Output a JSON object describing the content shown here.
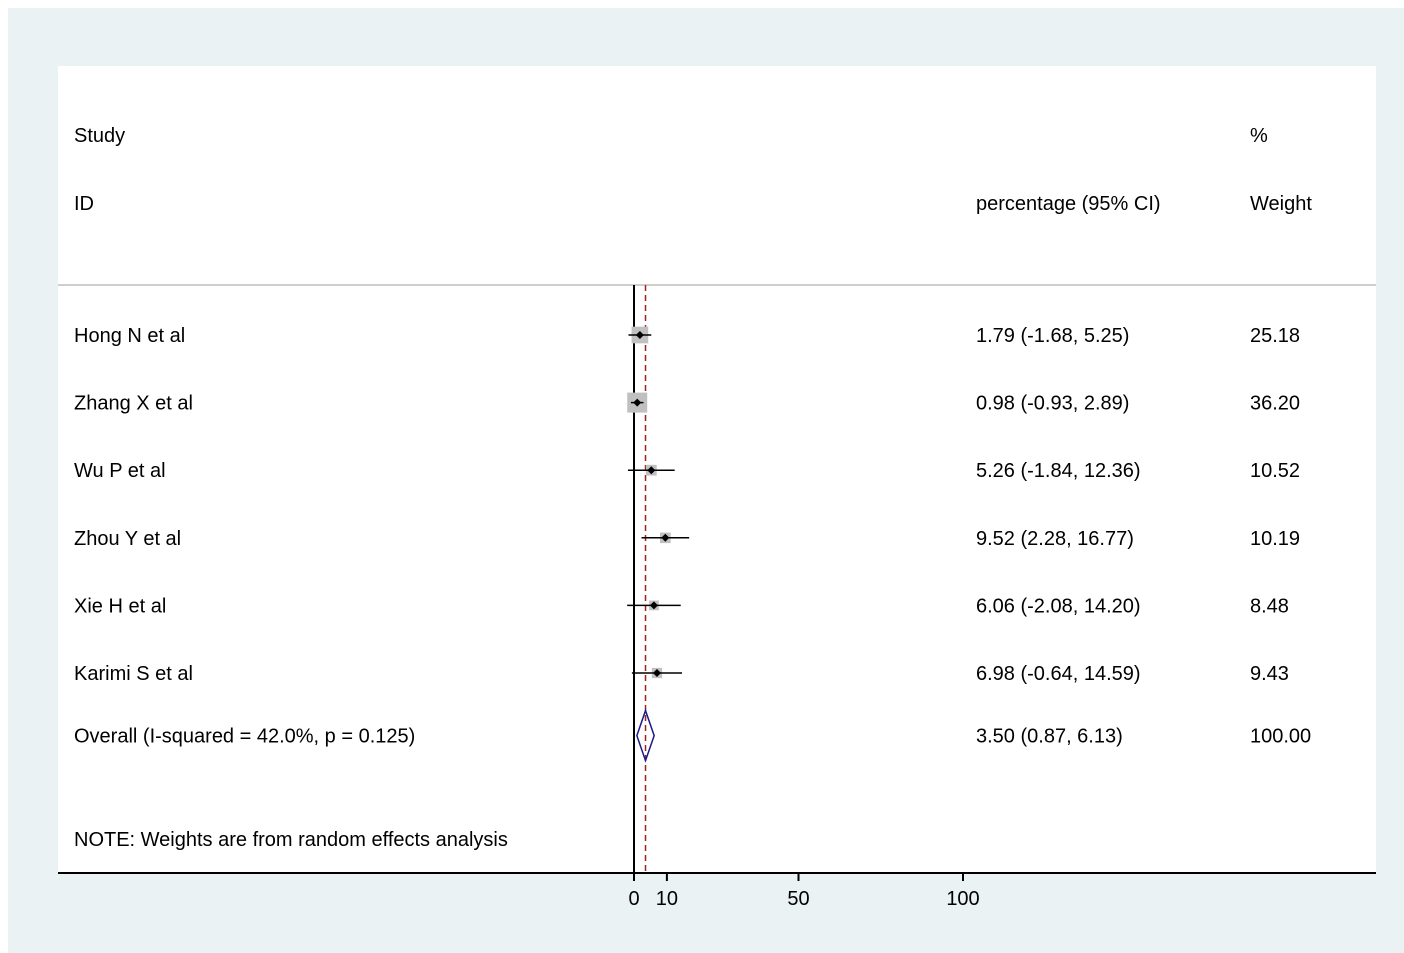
{
  "header": {
    "study_line1": "Study",
    "study_line2": "ID",
    "es_header": "percentage (95% CI)",
    "weight_line1": "%",
    "weight_line2": "Weight"
  },
  "note": "NOTE: Weights are from random effects analysis",
  "chart_data": {
    "type": "forest",
    "x_ticks": [
      0,
      10,
      50,
      100
    ],
    "x_tick_labels": [
      "0",
      "10",
      "50",
      "100"
    ],
    "null_line": 0,
    "studies": [
      {
        "label": "Hong N et al",
        "es": 1.79,
        "lo": -1.68,
        "hi": 5.25,
        "weight": 25.18,
        "ci_text": "1.79 (-1.68, 5.25)",
        "weight_text": "25.18"
      },
      {
        "label": "Zhang X et al",
        "es": 0.98,
        "lo": -0.93,
        "hi": 2.89,
        "weight": 36.2,
        "ci_text": "0.98 (-0.93, 2.89)",
        "weight_text": "36.20"
      },
      {
        "label": "Wu P et al",
        "es": 5.26,
        "lo": -1.84,
        "hi": 12.36,
        "weight": 10.52,
        "ci_text": "5.26 (-1.84, 12.36)",
        "weight_text": "10.52"
      },
      {
        "label": "Zhou Y et al",
        "es": 9.52,
        "lo": 2.28,
        "hi": 16.77,
        "weight": 10.19,
        "ci_text": "9.52 (2.28, 16.77)",
        "weight_text": "10.19"
      },
      {
        "label": "Xie H et al",
        "es": 6.06,
        "lo": -2.08,
        "hi": 14.2,
        "weight": 8.48,
        "ci_text": "6.06 (-2.08, 14.20)",
        "weight_text": "8.48"
      },
      {
        "label": "Karimi S et al",
        "es": 6.98,
        "lo": -0.64,
        "hi": 14.59,
        "weight": 9.43,
        "ci_text": "6.98 (-0.64, 14.59)",
        "weight_text": "9.43"
      }
    ],
    "overall": {
      "label": "Overall  (I-squared = 42.0%, p = 0.125)",
      "es": 3.5,
      "lo": 0.87,
      "hi": 6.13,
      "ci_text": "3.50 (0.87, 6.13)",
      "weight_text": "100.00"
    },
    "colors": {
      "box": "#c0c0c0",
      "line": "#000000",
      "diamond": "#1a1a8c",
      "overall_line": "#a02020",
      "divider": "#bfbfbf"
    }
  }
}
